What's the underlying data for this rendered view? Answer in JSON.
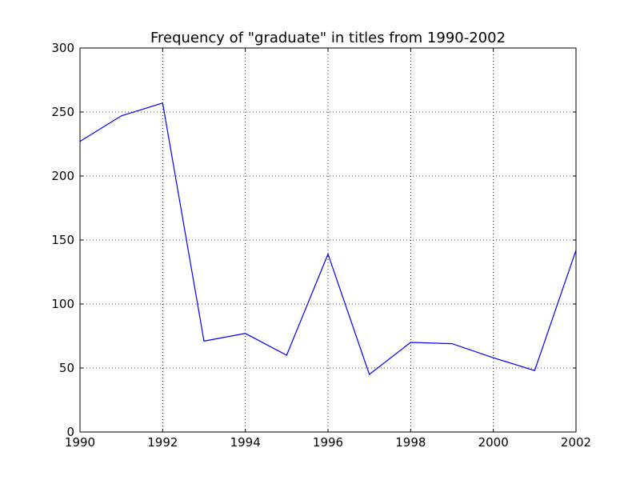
{
  "chart_data": {
    "type": "line",
    "title": "Frequency of \"graduate\" in titles from 1990-2002",
    "xlabel": "",
    "ylabel": "",
    "x": [
      1990,
      1991,
      1992,
      1993,
      1994,
      1995,
      1996,
      1997,
      1998,
      1999,
      2000,
      2001,
      2002
    ],
    "series": [
      {
        "values": [
          227,
          247,
          257,
          71,
          77,
          60,
          139,
          45,
          70,
          69,
          58,
          48,
          142
        ],
        "color": "#0000ff"
      }
    ],
    "xlim": [
      1990,
      2002
    ],
    "ylim": [
      0,
      300
    ],
    "xticks": [
      1990,
      1992,
      1994,
      1996,
      1998,
      2000,
      2002
    ],
    "yticks": [
      0,
      50,
      100,
      150,
      200,
      250,
      300
    ],
    "grid": true,
    "legend": "none"
  }
}
